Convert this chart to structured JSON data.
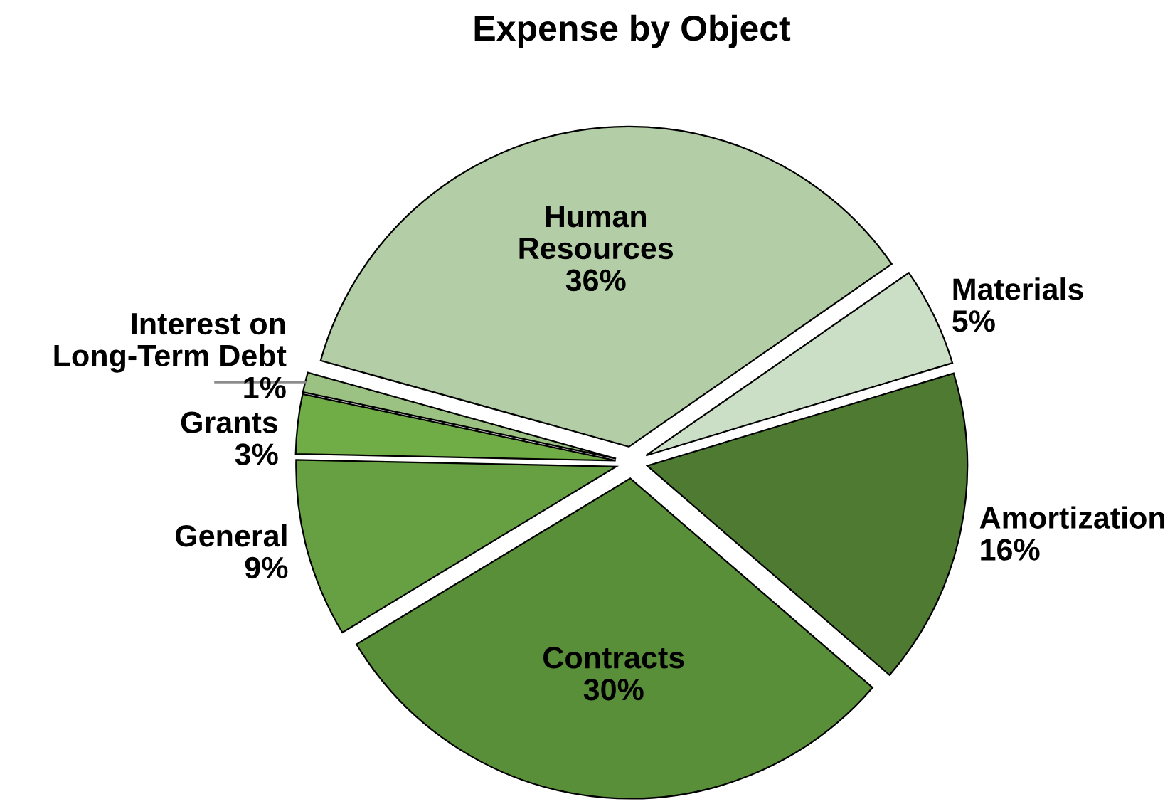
{
  "chart_data": {
    "type": "pie",
    "title": "Expense by Object",
    "categories": [
      "Human Resources",
      "Materials",
      "Amortization",
      "Contracts",
      "General",
      "Grants",
      "Interest on Long-Term Debt"
    ],
    "values": [
      36,
      5,
      16,
      30,
      9,
      3,
      1
    ],
    "value_labels": [
      "36%",
      "5%",
      "16%",
      "30%",
      "9%",
      "3%",
      "1%"
    ],
    "colors": [
      "#b3cda6",
      "#cbdec6",
      "#4e7b31",
      "#5a8f3a",
      "#67a043",
      "#70ad47",
      "#9bc283"
    ]
  }
}
